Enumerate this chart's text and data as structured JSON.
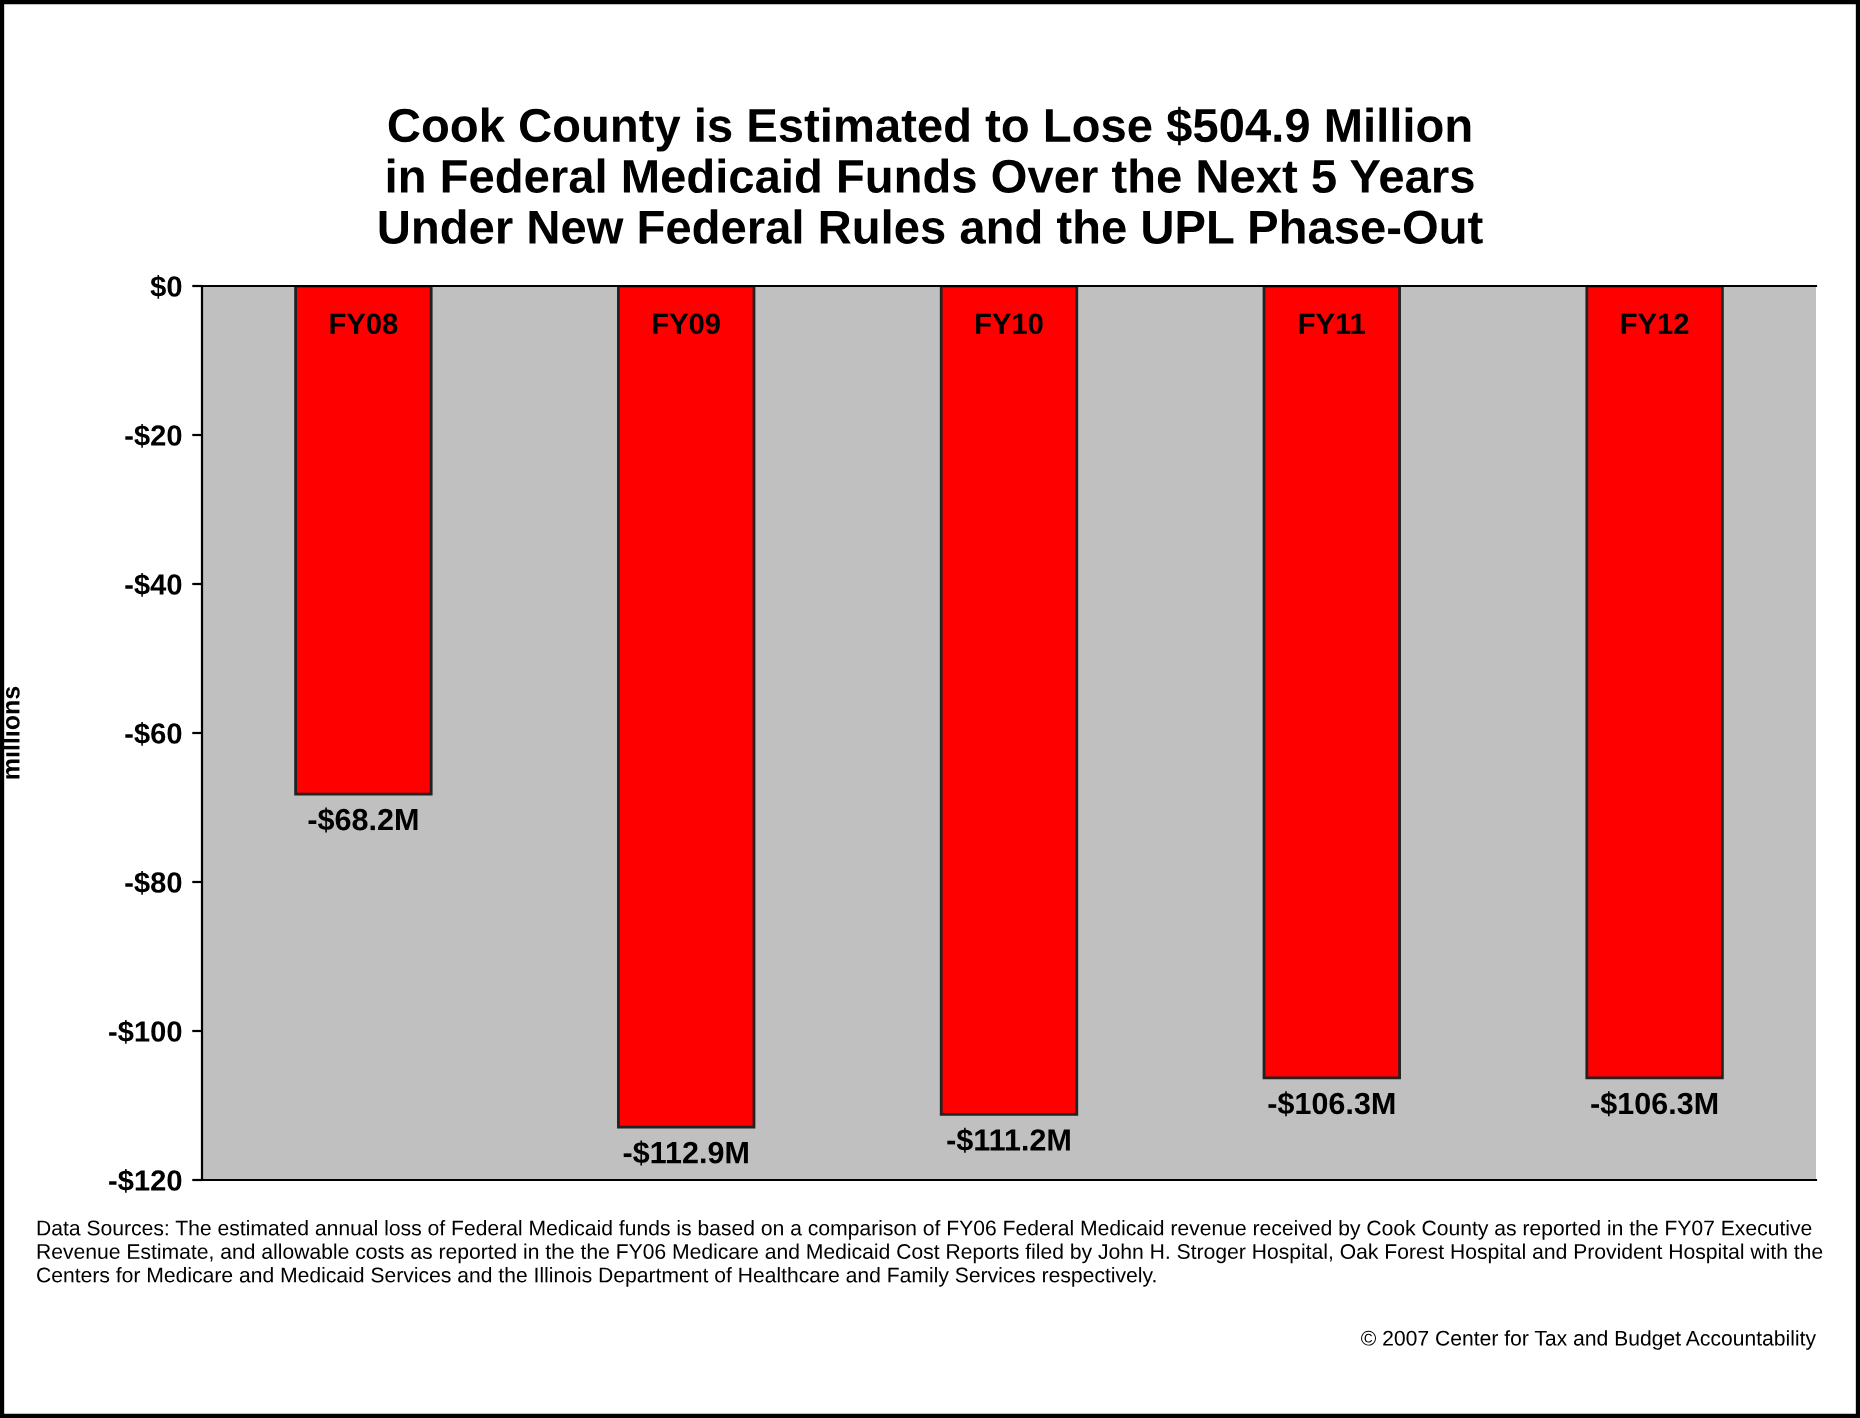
{
  "chart_data": {
    "type": "bar",
    "title": "Cook County is Estimated to Lose $504.9 Million\nin Federal Medicaid Funds Over the Next 5 Years\nUnder New Federal Rules and the UPL Phase-Out",
    "ylabel": "millions",
    "categories": [
      "FY08",
      "FY09",
      "FY10",
      "FY11",
      "FY12"
    ],
    "values": [
      -68.2,
      -112.9,
      -111.2,
      -106.3,
      -106.3
    ],
    "value_labels": [
      "-$68.2M",
      "-$112.9M",
      "-$111.2M",
      "-$106.3M",
      "-$106.3M"
    ],
    "color": "#ff0000",
    "ylim": [
      -120,
      0
    ],
    "yticks": [
      {
        "value": 0,
        "label": "$0"
      },
      {
        "value": -20,
        "label": "-$20"
      },
      {
        "value": -40,
        "label": "-$40"
      },
      {
        "value": -60,
        "label": "-$60"
      },
      {
        "value": -80,
        "label": "-$80"
      },
      {
        "value": -100,
        "label": "-$100"
      },
      {
        "value": -120,
        "label": "-$120"
      }
    ],
    "grid": false,
    "legend": false,
    "annotations": [
      "Data Sources: The estimated annual loss of Federal Medicaid funds is based on a comparison of FY06 Federal Medicaid revenue received by Cook County as reported in the FY07 Executive Revenue Estimate, and allowable costs as reported in the the FY06 Medicare and Medicaid Cost Reports filed by John H. Stroger Hospital, Oak Forest Hospital and Provident Hospital with the Centers for Medicare and Medicaid Services and the Illinois Department of Healthcare and Family Services respectively.",
      "© 2007 Center for Tax and Budget Accountability"
    ]
  }
}
